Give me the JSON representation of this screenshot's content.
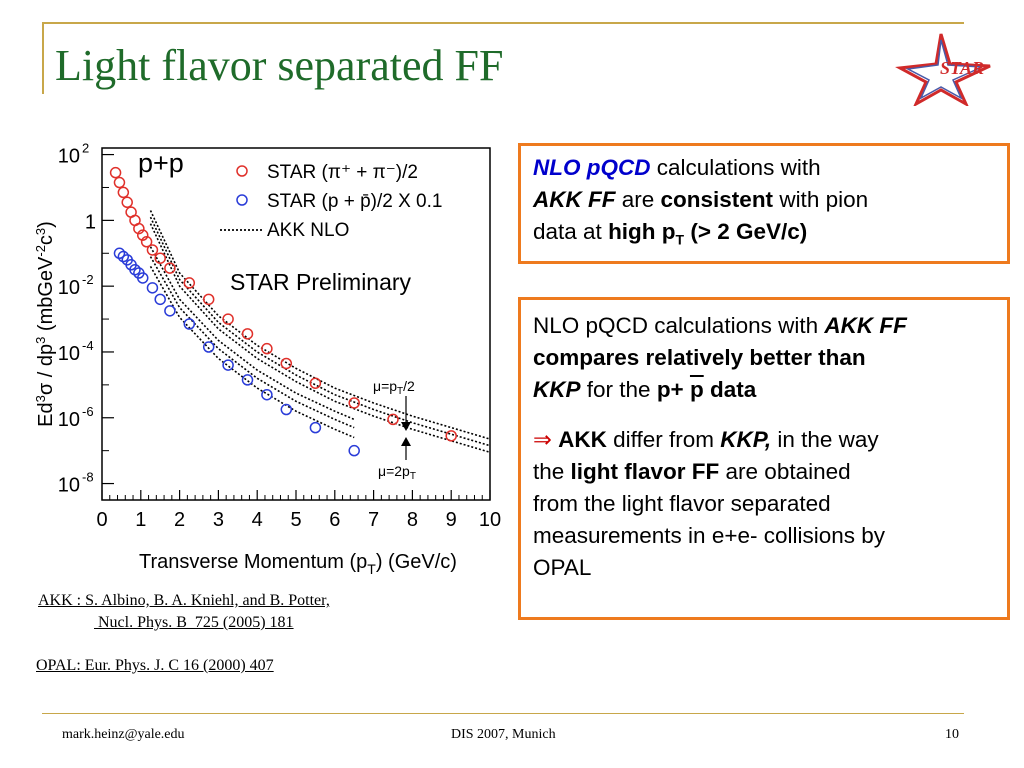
{
  "slide": {
    "title": "Light flavor separated FF",
    "logo_text": "STAR",
    "page_number": "10",
    "footer_left": "mark.heinz@yale.edu",
    "footer_center": "DIS 2007, Munich"
  },
  "box1": {
    "t1": "NLO pQCD",
    "t2": " calculations with",
    "t3": "AKK FF",
    "t4": "  are ",
    "t5": "consistent",
    "t6": " with pion",
    "t7": "data at ",
    "t8": "high p",
    "t9": "T",
    "t10": " (> 2 GeV/c)"
  },
  "box2": {
    "p1a": "NLO pQCD calculations with ",
    "p1b": "AKK FF",
    "p1c": "compares relatively better than",
    "p1d": "KKP",
    "p1e": "  for the ",
    "p1f": "p+  ",
    "p1g": "p",
    "p1h": " data",
    "p2a": "⇒ ",
    "p2b": "AKK",
    "p2c": " differ from ",
    "p2d": "KKP,",
    "p2e": " in the way",
    "p2f": "the ",
    "p2g": "light flavor FF",
    "p2h": " are obtained",
    "p2i": "from the light flavor separated",
    "p2j": "measurements in e+e- collisions by",
    "p2k": "OPAL"
  },
  "refs": {
    "akk_line1": "AKK : S. Albino, B. A. Kniehl, and B. Potter,",
    "akk_line2": " Nucl. Phys. B  725 (2005) 181",
    "opal": "OPAL: Eur. Phys. J. C 16 (2000) 407"
  },
  "colors": {
    "title": "#1f6b2a",
    "rule": "#c8a74a",
    "box_border": "#ee7a1e",
    "pion_markers": "#e0302a",
    "proton_markers": "#2a3cd8"
  },
  "chart_data": {
    "type": "scatter",
    "xlabel": "Transverse Momentum (p_T) (GeV/c)",
    "ylabel": "Ed³σ / dp³ (mbGeV⁻²c³)",
    "xlim": [
      0,
      10
    ],
    "ylim_log10": [
      -8.5,
      2.2
    ],
    "x_ticks": [
      "0",
      "1",
      "2",
      "3",
      "4",
      "5",
      "6",
      "7",
      "8",
      "9",
      "10"
    ],
    "y_ticks": [
      {
        "exp": 2,
        "label": "10",
        "sup": "2"
      },
      {
        "exp": 0,
        "label": "1",
        "sup": ""
      },
      {
        "exp": -2,
        "label": "10",
        "sup": "-2"
      },
      {
        "exp": -4,
        "label": "10",
        "sup": "-4"
      },
      {
        "exp": -6,
        "label": "10",
        "sup": "-6"
      },
      {
        "exp": -8,
        "label": "10",
        "sup": "-8"
      }
    ],
    "system_label": "p+p",
    "preliminary_label": "STAR Preliminary",
    "annot_mu_half": "μ=p_T/2",
    "annot_mu_two": "μ=2p_T",
    "legend": [
      {
        "label": "STAR (π⁺ + π⁻)/2",
        "marker": "circle",
        "color": "#e0302a"
      },
      {
        "label": "STAR (p + p̄)/2 X 0.1",
        "marker": "circle",
        "color": "#2a3cd8"
      },
      {
        "label": "AKK NLO",
        "marker": "dotted-line",
        "color": "#000000"
      }
    ],
    "series": [
      {
        "name": "STAR (π⁺ + π⁻)/2",
        "points": [
          [
            0.35,
            1.45
          ],
          [
            0.45,
            1.15
          ],
          [
            0.55,
            0.85
          ],
          [
            0.65,
            0.55
          ],
          [
            0.75,
            0.25
          ],
          [
            0.85,
            0.0
          ],
          [
            0.95,
            -0.25
          ],
          [
            1.05,
            -0.45
          ],
          [
            1.15,
            -0.65
          ],
          [
            1.3,
            -0.9
          ],
          [
            1.5,
            -1.15
          ],
          [
            1.75,
            -1.45
          ],
          [
            2.25,
            -1.9
          ],
          [
            2.75,
            -2.4
          ],
          [
            3.25,
            -3.0
          ],
          [
            3.75,
            -3.45
          ],
          [
            4.25,
            -3.9
          ],
          [
            4.75,
            -4.35
          ],
          [
            5.5,
            -4.95
          ],
          [
            6.5,
            -5.55
          ],
          [
            7.5,
            -6.05
          ],
          [
            9.0,
            -6.55
          ]
        ]
      },
      {
        "name": "STAR (p + p̄)/2 X 0.1",
        "points": [
          [
            0.45,
            -1.0
          ],
          [
            0.55,
            -1.1
          ],
          [
            0.65,
            -1.2
          ],
          [
            0.75,
            -1.35
          ],
          [
            0.85,
            -1.5
          ],
          [
            0.95,
            -1.6
          ],
          [
            1.05,
            -1.75
          ],
          [
            1.3,
            -2.05
          ],
          [
            1.5,
            -2.4
          ],
          [
            1.75,
            -2.75
          ],
          [
            2.25,
            -3.15
          ],
          [
            2.75,
            -3.85
          ],
          [
            3.25,
            -4.4
          ],
          [
            3.75,
            -4.85
          ],
          [
            4.25,
            -5.3
          ],
          [
            4.75,
            -5.75
          ],
          [
            5.5,
            -6.3
          ],
          [
            6.5,
            -7.0
          ]
        ]
      },
      {
        "name": "AKK NLO",
        "curves": [
          [
            [
              1.25,
              0.3
            ],
            [
              2.0,
              -1.6
            ],
            [
              3.0,
              -2.9
            ],
            [
              4.0,
              -3.8
            ],
            [
              5.0,
              -4.5
            ],
            [
              6.0,
              -5.1
            ],
            [
              7.0,
              -5.55
            ],
            [
              8.0,
              -5.95
            ],
            [
              9.0,
              -6.3
            ],
            [
              10.0,
              -6.65
            ]
          ],
          [
            [
              1.25,
              0.1
            ],
            [
              2.0,
              -1.8
            ],
            [
              3.0,
              -3.1
            ],
            [
              4.0,
              -4.0
            ],
            [
              5.0,
              -4.7
            ],
            [
              6.0,
              -5.3
            ],
            [
              7.0,
              -5.75
            ],
            [
              8.0,
              -6.15
            ],
            [
              9.0,
              -6.5
            ],
            [
              10.0,
              -6.85
            ]
          ],
          [
            [
              1.25,
              -0.1
            ],
            [
              2.0,
              -2.0
            ],
            [
              3.0,
              -3.3
            ],
            [
              4.0,
              -4.2
            ],
            [
              5.0,
              -4.9
            ],
            [
              6.0,
              -5.5
            ],
            [
              7.0,
              -5.95
            ],
            [
              8.0,
              -6.35
            ],
            [
              9.0,
              -6.7
            ],
            [
              10.0,
              -7.05
            ]
          ],
          [
            [
              1.25,
              -0.8
            ],
            [
              2.0,
              -2.4
            ],
            [
              3.0,
              -3.65
            ],
            [
              4.0,
              -4.55
            ],
            [
              5.0,
              -5.25
            ],
            [
              6.0,
              -5.8
            ],
            [
              6.5,
              -6.05
            ]
          ],
          [
            [
              1.25,
              -1.1
            ],
            [
              2.0,
              -2.65
            ],
            [
              3.0,
              -3.9
            ],
            [
              4.0,
              -4.8
            ],
            [
              5.0,
              -5.5
            ],
            [
              6.0,
              -6.05
            ],
            [
              6.5,
              -6.3
            ]
          ],
          [
            [
              1.25,
              -1.4
            ],
            [
              2.0,
              -2.95
            ],
            [
              3.0,
              -4.2
            ],
            [
              4.0,
              -5.1
            ],
            [
              5.0,
              -5.8
            ],
            [
              6.0,
              -6.35
            ],
            [
              6.5,
              -6.6
            ]
          ]
        ]
      }
    ]
  }
}
